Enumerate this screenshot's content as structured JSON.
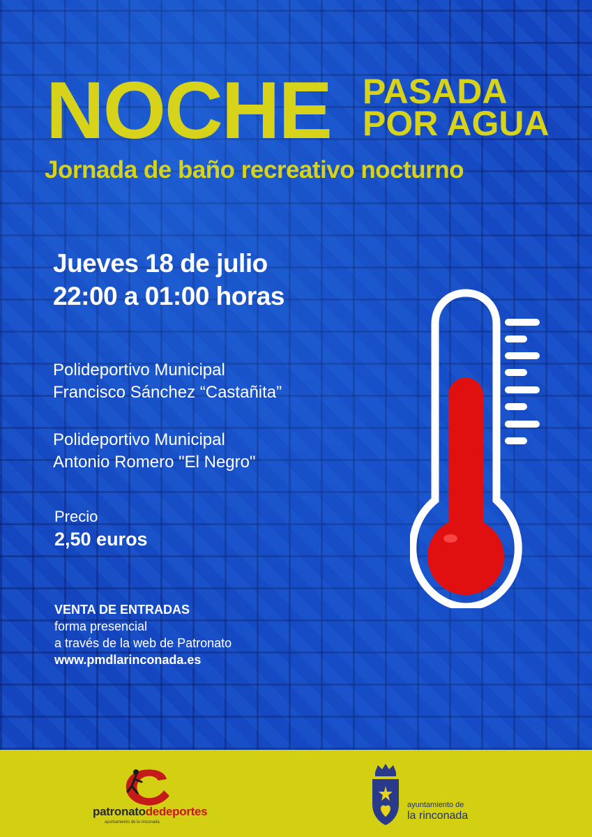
{
  "title": {
    "main": "NOCHE",
    "side_line1": "PASADA",
    "side_line2": "POR AGUA",
    "subtitle": "Jornada de baño recreativo nocturno"
  },
  "schedule": {
    "date": "Jueves 18 de julio",
    "time": "22:00 a 01:00 horas"
  },
  "venues": [
    {
      "line1": "Polideportivo Municipal",
      "line2": "Francisco Sánchez “Castañita”"
    },
    {
      "line1": "Polideportivo Municipal",
      "line2": "Antonio Romero \"El Negro\""
    }
  ],
  "price": {
    "label": "Precio",
    "value": "2,50 euros"
  },
  "tickets": {
    "heading": "VENTA DE ENTRADAS",
    "line1": "forma presencial",
    "line2": "a través de la web de Patronato",
    "url": "www.pmdlarinconada.es"
  },
  "footer": {
    "patronato_part1": "patronato",
    "patronato_part2": "de",
    "patronato_part3": "deportes",
    "patronato_sub": "ayuntamiento de la rinconada",
    "ayto_line1": "ayuntamiento de",
    "ayto_line2": "la rinconada"
  },
  "colors": {
    "background_blue": "#1445bf",
    "title_yellow": "#d7d21a",
    "footer_yellow": "#d3cf12",
    "thermometer_red": "#e01010"
  },
  "icons": {
    "thermometer": "thermometer-icon",
    "patronato_logo": "patronato-runner-logo",
    "rinconada_crest": "rinconada-crest-icon"
  },
  "thermometer_level": 0.55
}
